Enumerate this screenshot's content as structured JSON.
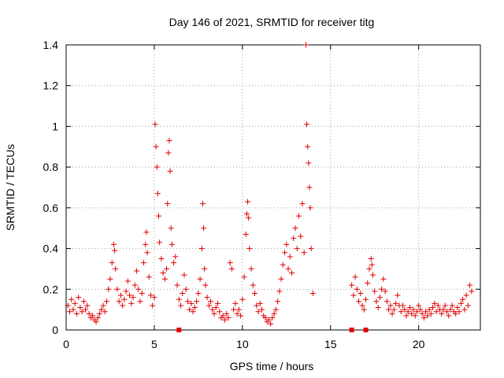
{
  "chart_data": {
    "type": "scatter",
    "title": "Day 146 of 2021, SRMTID for receiver titg",
    "xlabel": "GPS time / hours",
    "ylabel": "SRMTID / TECUs",
    "xlim": [
      0,
      23.5
    ],
    "ylim": [
      0,
      1.4
    ],
    "x_ticks": [
      0,
      5,
      10,
      15,
      20
    ],
    "x_tick_labels": [
      "0",
      "5",
      "10",
      "15",
      "20"
    ],
    "y_ticks": [
      0,
      0.2,
      0.4,
      0.6,
      0.8,
      1.0,
      1.2,
      1.4
    ],
    "y_tick_labels": [
      "0",
      "0.2",
      "0.4",
      "0.6",
      "0.8",
      "1",
      "1.2",
      "1.4"
    ],
    "grid": true,
    "marker": "plus",
    "series_color": "#e00000",
    "series": [
      {
        "name": "SRMTID",
        "points": [
          [
            0.1,
            0.12
          ],
          [
            0.2,
            0.09
          ],
          [
            0.3,
            0.15
          ],
          [
            0.4,
            0.1
          ],
          [
            0.5,
            0.13
          ],
          [
            0.6,
            0.08
          ],
          [
            0.7,
            0.16
          ],
          [
            0.8,
            0.11
          ],
          [
            0.9,
            0.09
          ],
          [
            1.0,
            0.14
          ],
          [
            1.1,
            0.1
          ],
          [
            1.2,
            0.12
          ],
          [
            1.3,
            0.08
          ],
          [
            1.4,
            0.06
          ],
          [
            1.5,
            0.07
          ],
          [
            1.6,
            0.05
          ],
          [
            1.7,
            0.04
          ],
          [
            1.8,
            0.06
          ],
          [
            1.9,
            0.08
          ],
          [
            2.0,
            0.1
          ],
          [
            2.1,
            0.12
          ],
          [
            2.2,
            0.09
          ],
          [
            2.3,
            0.14
          ],
          [
            2.4,
            0.2
          ],
          [
            2.5,
            0.25
          ],
          [
            2.6,
            0.33
          ],
          [
            2.7,
            0.42
          ],
          [
            2.75,
            0.39
          ],
          [
            2.8,
            0.3
          ],
          [
            2.9,
            0.2
          ],
          [
            3.0,
            0.14
          ],
          [
            3.1,
            0.17
          ],
          [
            3.2,
            0.12
          ],
          [
            3.3,
            0.15
          ],
          [
            3.4,
            0.19
          ],
          [
            3.5,
            0.24
          ],
          [
            3.6,
            0.17
          ],
          [
            3.7,
            0.13
          ],
          [
            3.8,
            0.16
          ],
          [
            3.9,
            0.22
          ],
          [
            4.0,
            0.29
          ],
          [
            4.1,
            0.2
          ],
          [
            4.2,
            0.14
          ],
          [
            4.3,
            0.18
          ],
          [
            4.4,
            0.33
          ],
          [
            4.5,
            0.42
          ],
          [
            4.55,
            0.48
          ],
          [
            4.6,
            0.38
          ],
          [
            4.7,
            0.26
          ],
          [
            4.8,
            0.17
          ],
          [
            4.9,
            0.12
          ],
          [
            5.0,
            0.16
          ],
          [
            5.05,
            1.01
          ],
          [
            5.1,
            0.9
          ],
          [
            5.15,
            0.8
          ],
          [
            5.2,
            0.67
          ],
          [
            5.25,
            0.56
          ],
          [
            5.3,
            0.43
          ],
          [
            5.4,
            0.35
          ],
          [
            5.5,
            0.28
          ],
          [
            5.6,
            0.25
          ],
          [
            5.7,
            0.3
          ],
          [
            5.75,
            0.62
          ],
          [
            5.8,
            0.87
          ],
          [
            5.85,
            0.93
          ],
          [
            5.9,
            0.78
          ],
          [
            5.95,
            0.5
          ],
          [
            6.0,
            0.42
          ],
          [
            6.1,
            0.33
          ],
          [
            6.2,
            0.36
          ],
          [
            6.3,
            0.22
          ],
          [
            6.4,
            0.15
          ],
          [
            6.5,
            0.12
          ],
          [
            6.6,
            0.18
          ],
          [
            6.7,
            0.27
          ],
          [
            6.8,
            0.2
          ],
          [
            6.9,
            0.14
          ],
          [
            7.0,
            0.1
          ],
          [
            7.1,
            0.13
          ],
          [
            7.2,
            0.09
          ],
          [
            7.3,
            0.11
          ],
          [
            7.4,
            0.14
          ],
          [
            7.5,
            0.18
          ],
          [
            7.6,
            0.25
          ],
          [
            7.7,
            0.4
          ],
          [
            7.75,
            0.62
          ],
          [
            7.8,
            0.5
          ],
          [
            7.85,
            0.3
          ],
          [
            7.9,
            0.22
          ],
          [
            8.0,
            0.16
          ],
          [
            8.1,
            0.12
          ],
          [
            8.2,
            0.14
          ],
          [
            8.3,
            0.1
          ],
          [
            8.4,
            0.08
          ],
          [
            8.5,
            0.11
          ],
          [
            8.6,
            0.13
          ],
          [
            8.7,
            0.09
          ],
          [
            8.8,
            0.06
          ],
          [
            8.9,
            0.07
          ],
          [
            9.0,
            0.05
          ],
          [
            9.1,
            0.08
          ],
          [
            9.2,
            0.06
          ],
          [
            9.3,
            0.33
          ],
          [
            9.4,
            0.3
          ],
          [
            9.5,
            0.1
          ],
          [
            9.6,
            0.13
          ],
          [
            9.7,
            0.08
          ],
          [
            9.8,
            0.1
          ],
          [
            9.9,
            0.07
          ],
          [
            10.0,
            0.15
          ],
          [
            10.1,
            0.26
          ],
          [
            10.2,
            0.47
          ],
          [
            10.25,
            0.57
          ],
          [
            10.3,
            0.63
          ],
          [
            10.35,
            0.55
          ],
          [
            10.4,
            0.4
          ],
          [
            10.5,
            0.3
          ],
          [
            10.6,
            0.22
          ],
          [
            10.7,
            0.18
          ],
          [
            10.8,
            0.12
          ],
          [
            10.9,
            0.09
          ],
          [
            11.0,
            0.13
          ],
          [
            11.1,
            0.1
          ],
          [
            11.2,
            0.07
          ],
          [
            11.3,
            0.06
          ],
          [
            11.4,
            0.04
          ],
          [
            11.5,
            0.05
          ],
          [
            11.6,
            0.03
          ],
          [
            11.7,
            0.06
          ],
          [
            11.8,
            0.08
          ],
          [
            11.9,
            0.1
          ],
          [
            12.0,
            0.14
          ],
          [
            12.1,
            0.19
          ],
          [
            12.2,
            0.25
          ],
          [
            12.3,
            0.32
          ],
          [
            12.4,
            0.38
          ],
          [
            12.5,
            0.42
          ],
          [
            12.6,
            0.3
          ],
          [
            12.7,
            0.36
          ],
          [
            12.8,
            0.28
          ],
          [
            12.9,
            0.45
          ],
          [
            13.0,
            0.5
          ],
          [
            13.1,
            0.4
          ],
          [
            13.2,
            0.56
          ],
          [
            13.3,
            0.46
          ],
          [
            13.4,
            0.62
          ],
          [
            13.5,
            0.38
          ],
          [
            13.6,
            1.4
          ],
          [
            13.65,
            1.01
          ],
          [
            13.7,
            0.9
          ],
          [
            13.75,
            0.82
          ],
          [
            13.8,
            0.7
          ],
          [
            13.85,
            0.6
          ],
          [
            13.9,
            0.4
          ],
          [
            14.0,
            0.18
          ],
          [
            16.2,
            0.22
          ],
          [
            16.3,
            0.17
          ],
          [
            16.4,
            0.26
          ],
          [
            16.5,
            0.2
          ],
          [
            16.6,
            0.14
          ],
          [
            16.7,
            0.18
          ],
          [
            16.8,
            0.12
          ],
          [
            16.9,
            0.1
          ],
          [
            17.0,
            0.15
          ],
          [
            17.1,
            0.23
          ],
          [
            17.2,
            0.3
          ],
          [
            17.3,
            0.35
          ],
          [
            17.35,
            0.32
          ],
          [
            17.4,
            0.27
          ],
          [
            17.5,
            0.19
          ],
          [
            17.6,
            0.14
          ],
          [
            17.7,
            0.11
          ],
          [
            17.8,
            0.16
          ],
          [
            17.9,
            0.2
          ],
          [
            18.0,
            0.25
          ],
          [
            18.1,
            0.19
          ],
          [
            18.2,
            0.14
          ],
          [
            18.3,
            0.1
          ],
          [
            18.4,
            0.12
          ],
          [
            18.5,
            0.08
          ],
          [
            18.6,
            0.1
          ],
          [
            18.7,
            0.13
          ],
          [
            18.8,
            0.17
          ],
          [
            18.9,
            0.12
          ],
          [
            19.0,
            0.09
          ],
          [
            19.1,
            0.12
          ],
          [
            19.2,
            0.1
          ],
          [
            19.3,
            0.07
          ],
          [
            19.4,
            0.09
          ],
          [
            19.5,
            0.11
          ],
          [
            19.6,
            0.08
          ],
          [
            19.7,
            0.1
          ],
          [
            19.8,
            0.07
          ],
          [
            19.9,
            0.09
          ],
          [
            20.0,
            0.12
          ],
          [
            20.1,
            0.1
          ],
          [
            20.2,
            0.08
          ],
          [
            20.3,
            0.06
          ],
          [
            20.4,
            0.09
          ],
          [
            20.5,
            0.07
          ],
          [
            20.6,
            0.1
          ],
          [
            20.7,
            0.08
          ],
          [
            20.8,
            0.11
          ],
          [
            20.9,
            0.13
          ],
          [
            21.0,
            0.09
          ],
          [
            21.1,
            0.12
          ],
          [
            21.2,
            0.1
          ],
          [
            21.3,
            0.08
          ],
          [
            21.4,
            0.1
          ],
          [
            21.5,
            0.12
          ],
          [
            21.6,
            0.09
          ],
          [
            21.7,
            0.07
          ],
          [
            21.8,
            0.1
          ],
          [
            21.9,
            0.12
          ],
          [
            22.0,
            0.09
          ],
          [
            22.1,
            0.08
          ],
          [
            22.2,
            0.11
          ],
          [
            22.3,
            0.09
          ],
          [
            22.4,
            0.13
          ],
          [
            22.5,
            0.15
          ],
          [
            22.6,
            0.1
          ],
          [
            22.7,
            0.17
          ],
          [
            22.8,
            0.12
          ],
          [
            22.9,
            0.22
          ],
          [
            23.0,
            0.19
          ]
        ]
      }
    ],
    "gap_markers": [
      6.4,
      16.2,
      17.0
    ]
  }
}
